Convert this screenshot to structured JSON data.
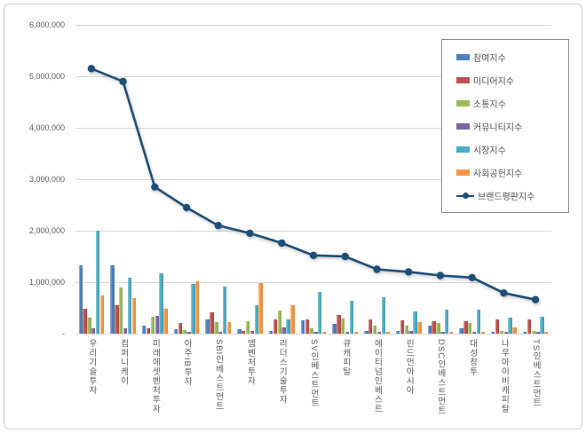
{
  "frame": {
    "background": "#ffffff",
    "border_color": "#cdcdcd"
  },
  "chart_data": {
    "type": "bar",
    "title": "",
    "grid": true,
    "legend_position": "top-right",
    "categories": [
      "우리기술투자",
      "컴퍼니케이",
      "미래에셋벤처투자",
      "아주IB투자",
      "SBI인베스트먼트",
      "엠벤처투자",
      "리더스기술투자",
      "SV인베스트먼트",
      "큐캐피탈",
      "에이티넘인베스트",
      "린드먼아시아",
      "DSC인베스트먼트",
      "대성창투",
      "나우아이비캐피탈",
      "TS인베스트먼트"
    ],
    "y_axis": {
      "min": 0,
      "max": 6000000,
      "step": 1000000,
      "ticks": [
        {
          "value": 0,
          "label": "-"
        },
        {
          "value": 1000000,
          "label": "1,000,000"
        },
        {
          "value": 2000000,
          "label": "2,000,000"
        },
        {
          "value": 3000000,
          "label": "3,000,000"
        },
        {
          "value": 4000000,
          "label": "4,000,000"
        },
        {
          "value": 5000000,
          "label": "5,000,000"
        },
        {
          "value": 6000000,
          "label": "6,000,000"
        }
      ]
    },
    "series": [
      {
        "name": "참여지수",
        "render": "bar",
        "color": "#4F81BD",
        "values": [
          1320000,
          1330000,
          160000,
          80000,
          270000,
          80000,
          60000,
          260000,
          190000,
          50000,
          60000,
          150000,
          100000,
          30000,
          40000
        ]
      },
      {
        "name": "미디어지수",
        "render": "bar",
        "color": "#C0504D",
        "values": [
          490000,
          550000,
          110000,
          200000,
          420000,
          50000,
          270000,
          270000,
          370000,
          270000,
          260000,
          250000,
          240000,
          270000,
          270000
        ]
      },
      {
        "name": "소통지수",
        "render": "bar",
        "color": "#9BBB59",
        "values": [
          310000,
          900000,
          330000,
          70000,
          220000,
          240000,
          450000,
          100000,
          290000,
          150000,
          150000,
          210000,
          210000,
          60000,
          50000
        ]
      },
      {
        "name": "커뮤니티지수",
        "render": "bar",
        "color": "#8064A2",
        "values": [
          100000,
          100000,
          350000,
          30000,
          40000,
          60000,
          120000,
          40000,
          40000,
          40000,
          50000,
          30000,
          30000,
          30000,
          30000
        ]
      },
      {
        "name": "시장지수",
        "render": "bar",
        "color": "#4BACC6",
        "values": [
          2000000,
          1090000,
          1180000,
          970000,
          910000,
          550000,
          270000,
          810000,
          630000,
          700000,
          430000,
          460000,
          460000,
          310000,
          330000
        ]
      },
      {
        "name": "사회공헌지수",
        "render": "bar",
        "color": "#F79646",
        "values": [
          740000,
          690000,
          480000,
          1020000,
          230000,
          990000,
          560000,
          30000,
          40000,
          30000,
          230000,
          30000,
          30000,
          120000,
          30000
        ]
      },
      {
        "name": "브랜드평판지수",
        "render": "line",
        "color": "#1F4E79",
        "values": [
          5150000,
          4900000,
          2850000,
          2450000,
          2100000,
          1950000,
          1760000,
          1520000,
          1500000,
          1250000,
          1200000,
          1130000,
          1090000,
          790000,
          660000
        ]
      }
    ],
    "gridline_color": "#d9d9d9",
    "axis_text_color": "#595959"
  }
}
